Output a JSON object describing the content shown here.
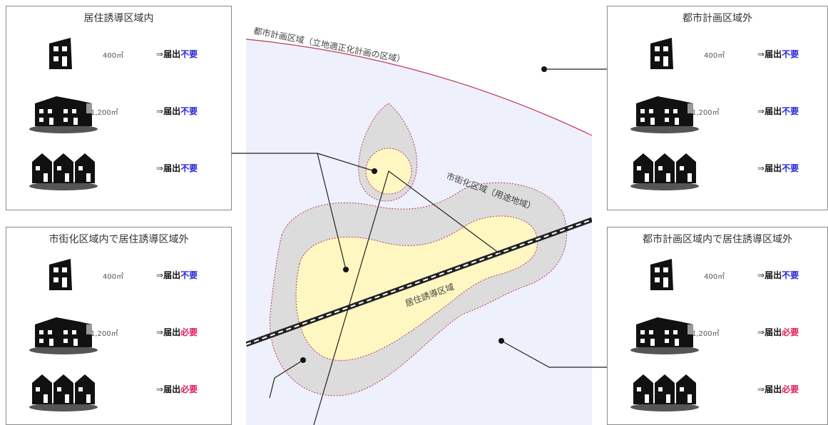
{
  "colors": {
    "city_area_bg": "#eef0fb",
    "urbanization_area": "#dcdcdc",
    "induction_area": "#fff7c2",
    "boundary_line": "#c0365a",
    "railway": "#222222",
    "not_required": "#2a2ad8",
    "required": "#e0205a"
  },
  "map_labels": {
    "city_planning_area": "都市計画区域（立地適正化計画の区域）",
    "urbanization_area": "市街化区域（用途地域）",
    "residence_induction_area": "居住誘導区域"
  },
  "panels": [
    {
      "id": "residence-inside",
      "title": "居住誘導区域内",
      "rows": [
        {
          "house_icon": "single-house-icon",
          "area": "400㎡",
          "arrow": "⇒",
          "verb": "届出",
          "result": "不要",
          "required": false
        },
        {
          "house_icon": "wide-house-icon",
          "area": "1,200㎡",
          "arrow": "⇒",
          "verb": "届出",
          "result": "不要",
          "required": false
        },
        {
          "house_icon": "three-houses-icon",
          "area": "",
          "arrow": "⇒",
          "verb": "届出",
          "result": "不要",
          "required": false
        }
      ]
    },
    {
      "id": "urban-outside-residence",
      "title": "市街化区域内で居住誘導区域外",
      "rows": [
        {
          "house_icon": "single-house-icon",
          "area": "400㎡",
          "arrow": "⇒",
          "verb": "届出",
          "result": "不要",
          "required": false
        },
        {
          "house_icon": "wide-house-icon",
          "area": "1,200㎡",
          "arrow": "⇒",
          "verb": "届出",
          "result": "必要",
          "required": true
        },
        {
          "house_icon": "three-houses-icon",
          "area": "",
          "arrow": "⇒",
          "verb": "届出",
          "result": "必要",
          "required": true
        }
      ]
    },
    {
      "id": "outside-city-planning",
      "title": "都市計画区域外",
      "rows": [
        {
          "house_icon": "single-house-icon",
          "area": "400㎡",
          "arrow": "⇒",
          "verb": "届出",
          "result": "不要",
          "required": false
        },
        {
          "house_icon": "wide-house-icon",
          "area": "1,200㎡",
          "arrow": "⇒",
          "verb": "届出",
          "result": "不要",
          "required": false
        },
        {
          "house_icon": "three-houses-icon",
          "area": "",
          "arrow": "⇒",
          "verb": "届出",
          "result": "不要",
          "required": false
        }
      ]
    },
    {
      "id": "city-planning-outside-residence",
      "title": "都市計画区域内で居住誘導区域外",
      "rows": [
        {
          "house_icon": "single-house-icon",
          "area": "400㎡",
          "arrow": "⇒",
          "verb": "届出",
          "result": "不要",
          "required": false
        },
        {
          "house_icon": "wide-house-icon",
          "area": "1,200㎡",
          "arrow": "⇒",
          "verb": "届出",
          "result": "必要",
          "required": true
        },
        {
          "house_icon": "three-houses-icon",
          "area": "",
          "arrow": "⇒",
          "verb": "届出",
          "result": "必要",
          "required": true
        }
      ]
    }
  ]
}
